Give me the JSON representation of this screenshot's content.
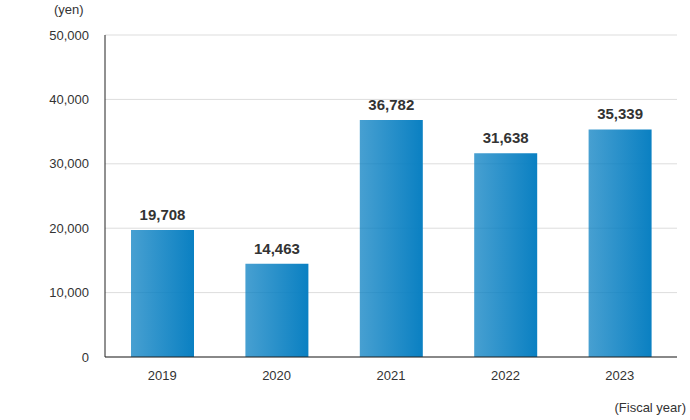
{
  "chart_data": {
    "type": "bar",
    "y_label": "(yen)",
    "x_label": "(Fiscal year)",
    "categories": [
      "2019",
      "2020",
      "2021",
      "2022",
      "2023"
    ],
    "values": [
      19708,
      14463,
      36782,
      31638,
      35339
    ],
    "value_labels": [
      "19,708",
      "14,463",
      "36,782",
      "31,638",
      "35,339"
    ],
    "color": "#0a80c2",
    "ylim": [
      0,
      50000
    ],
    "yticks": [
      0,
      {
        "value": 10000,
        "label": "10,000"
      },
      {
        "value": 20000,
        "label": "20,000"
      },
      {
        "value": 30000,
        "label": "30,000"
      },
      {
        "value": 40000,
        "label": "40,000"
      },
      {
        "value": 50000,
        "label": "50,000"
      }
    ],
    "grid": true,
    "data_labels": true
  }
}
